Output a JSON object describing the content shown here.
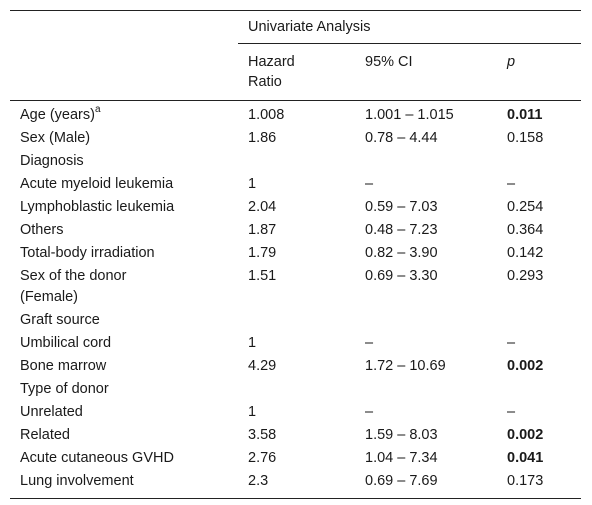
{
  "table": {
    "group_header": "Univariate Analysis",
    "columns": {
      "hr_line1": "Hazard",
      "hr_line2": "Ratio",
      "ci": "95% CI",
      "p": "p"
    },
    "rows": [
      {
        "label": "Age (years)",
        "sup": "a",
        "hr": "1.008",
        "ci": "1.001 – 1.015",
        "p": "0.011",
        "p_bold": true
      },
      {
        "label": "Sex (Male)",
        "hr": "1.86",
        "ci": "0.78 – 4.44",
        "p": "0.158",
        "p_bold": false
      },
      {
        "label": "Diagnosis",
        "hr": "",
        "ci": "",
        "p": "",
        "p_bold": false
      },
      {
        "label": "Acute myeloid leukemia",
        "hr": "1",
        "ci": "–",
        "p": "–",
        "p_bold": false
      },
      {
        "label": "Lymphoblastic leukemia",
        "hr": "2.04",
        "ci": "0.59 – 7.03",
        "p": "0.254",
        "p_bold": false
      },
      {
        "label": "Others",
        "hr": "1.87",
        "ci": "0.48 – 7.23",
        "p": "0.364",
        "p_bold": false
      },
      {
        "label": "Total-body irradiation",
        "hr": "1.79",
        "ci": "0.82 – 3.90",
        "p": "0.142",
        "p_bold": false
      },
      {
        "label": "Sex of the donor",
        "label2": "(Female)",
        "hr": "1.51",
        "ci": "0.69 – 3.30",
        "p": "0.293",
        "p_bold": false
      },
      {
        "label": "Graft source",
        "hr": "",
        "ci": "",
        "p": "",
        "p_bold": false
      },
      {
        "label": "Umbilical cord",
        "hr": "1",
        "ci": "–",
        "p": "–",
        "p_bold": false
      },
      {
        "label": "Bone marrow",
        "hr": "4.29",
        "ci": "1.72 – 10.69",
        "p": "0.002",
        "p_bold": true
      },
      {
        "label": "Type of donor",
        "hr": "",
        "ci": "",
        "p": "",
        "p_bold": false
      },
      {
        "label": "Unrelated",
        "hr": "1",
        "ci": "–",
        "p": "–",
        "p_bold": false
      },
      {
        "label": "Related",
        "hr": "3.58",
        "ci": "1.59 – 8.03",
        "p": "0.002",
        "p_bold": true
      },
      {
        "label": "Acute cutaneous GVHD",
        "hr": "2.76",
        "ci": "1.04 – 7.34",
        "p": "0.041",
        "p_bold": true
      },
      {
        "label": "Lung involvement",
        "hr": "2.3",
        "ci": "0.69 – 7.69",
        "p": "0.173",
        "p_bold": false
      }
    ]
  }
}
